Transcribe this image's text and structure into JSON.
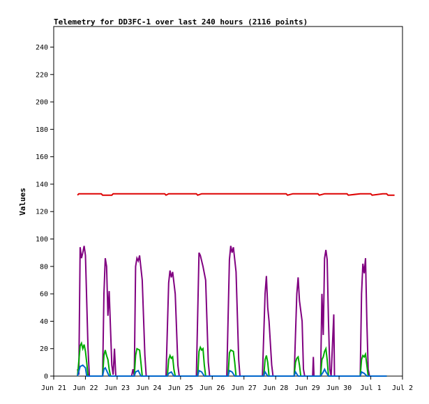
{
  "chart_data": {
    "type": "line",
    "title": "Telemetry for DD3FC-1 over last 240 hours (2116 points)",
    "ylabel": "Values",
    "xlabel": "",
    "ylim": [
      0,
      255
    ],
    "yticks": [
      0,
      20,
      40,
      60,
      80,
      100,
      120,
      140,
      160,
      180,
      200,
      220,
      240
    ],
    "xlim": [
      "2023-06-21",
      "2023-07-02"
    ],
    "xticks": [
      {
        "date": "2023-06-21",
        "label": "Jun 21"
      },
      {
        "date": "2023-06-22",
        "label": "Jun 22"
      },
      {
        "date": "2023-06-23",
        "label": "Jun 23"
      },
      {
        "date": "2023-06-24",
        "label": "Jun 24"
      },
      {
        "date": "2023-06-25",
        "label": "Jun 25"
      },
      {
        "date": "2023-06-26",
        "label": "Jun 26"
      },
      {
        "date": "2023-06-27",
        "label": "Jun 27"
      },
      {
        "date": "2023-06-28",
        "label": "Jun 28"
      },
      {
        "date": "2023-06-29",
        "label": "Jun 29"
      },
      {
        "date": "2023-06-30",
        "label": "Jun 30"
      },
      {
        "date": "2023-07-01",
        "label": "Jul 1"
      },
      {
        "date": "2023-07-02",
        "label": "Jul 2"
      }
    ],
    "grid": false,
    "legend": "none",
    "series": [
      {
        "color": "#dd0000",
        "points": [
          [
            "2023-06-21 18:00",
            132
          ],
          [
            "2023-06-21 19:00",
            133
          ],
          [
            "2023-06-22 12:00",
            133
          ],
          [
            "2023-06-22 13:00",
            132
          ],
          [
            "2023-06-22 20:00",
            132
          ],
          [
            "2023-06-22 21:00",
            133
          ],
          [
            "2023-06-24 12:00",
            133
          ],
          [
            "2023-06-24 13:00",
            132
          ],
          [
            "2023-06-24 15:00",
            133
          ],
          [
            "2023-06-25 12:00",
            133
          ],
          [
            "2023-06-25 13:00",
            132
          ],
          [
            "2023-06-25 16:00",
            133
          ],
          [
            "2023-06-27 20:00",
            133
          ],
          [
            "2023-06-28 08:00",
            133
          ],
          [
            "2023-06-28 09:00",
            132
          ],
          [
            "2023-06-28 13:00",
            133
          ],
          [
            "2023-06-29 08:00",
            133
          ],
          [
            "2023-06-29 09:00",
            132
          ],
          [
            "2023-06-29 13:00",
            133
          ],
          [
            "2023-06-30 06:00",
            133
          ],
          [
            "2023-06-30 07:00",
            132
          ],
          [
            "2023-06-30 16:00",
            133
          ],
          [
            "2023-07-01 00:00",
            133
          ],
          [
            "2023-07-01 01:00",
            132
          ],
          [
            "2023-07-01 09:00",
            133
          ],
          [
            "2023-07-01 12:00",
            133
          ],
          [
            "2023-07-01 13:00",
            132
          ],
          [
            "2023-07-01 18:00",
            132
          ]
        ]
      },
      {
        "color": "#800080",
        "points": [
          [
            "2023-06-21 18:00",
            5
          ],
          [
            "2023-06-21 19:00",
            1
          ],
          [
            "2023-06-21 20:00",
            94
          ],
          [
            "2023-06-21 21:00",
            86
          ],
          [
            "2023-06-21 22:00",
            90
          ],
          [
            "2023-06-21 23:00",
            95
          ],
          [
            "2023-06-22 00:00",
            88
          ],
          [
            "2023-06-22 02:00",
            20
          ],
          [
            "2023-06-22 03:00",
            0
          ],
          [
            "2023-06-22 10:00",
            0
          ],
          [
            "2023-06-22 13:00",
            0
          ],
          [
            "2023-06-22 14:00",
            60
          ],
          [
            "2023-06-22 15:00",
            86
          ],
          [
            "2023-06-22 16:00",
            80
          ],
          [
            "2023-06-22 17:00",
            44
          ],
          [
            "2023-06-22 18:00",
            62
          ],
          [
            "2023-06-22 20:00",
            8
          ],
          [
            "2023-06-22 21:00",
            1
          ],
          [
            "2023-06-22 22:00",
            20
          ],
          [
            "2023-06-22 23:00",
            0
          ],
          [
            "2023-06-23 11:00",
            0
          ],
          [
            "2023-06-23 12:00",
            5
          ],
          [
            "2023-06-23 13:00",
            0
          ],
          [
            "2023-06-23 14:00",
            80
          ],
          [
            "2023-06-23 15:00",
            86
          ],
          [
            "2023-06-23 16:00",
            84
          ],
          [
            "2023-06-23 17:00",
            88
          ],
          [
            "2023-06-23 19:00",
            70
          ],
          [
            "2023-06-23 21:00",
            15
          ],
          [
            "2023-06-23 22:00",
            0
          ],
          [
            "2023-06-24 13:00",
            0
          ],
          [
            "2023-06-24 15:00",
            68
          ],
          [
            "2023-06-24 16:00",
            77
          ],
          [
            "2023-06-24 17:00",
            72
          ],
          [
            "2023-06-24 18:00",
            76
          ],
          [
            "2023-06-24 20:00",
            60
          ],
          [
            "2023-06-24 22:00",
            8
          ],
          [
            "2023-06-24 23:00",
            0
          ],
          [
            "2023-06-25 12:00",
            0
          ],
          [
            "2023-06-25 14:00",
            90
          ],
          [
            "2023-06-25 15:00",
            88
          ],
          [
            "2023-06-25 16:00",
            84
          ],
          [
            "2023-06-25 17:00",
            80
          ],
          [
            "2023-06-25 19:00",
            70
          ],
          [
            "2023-06-25 21:00",
            10
          ],
          [
            "2023-06-25 22:00",
            0
          ],
          [
            "2023-06-26 11:00",
            0
          ],
          [
            "2023-06-26 13:00",
            85
          ],
          [
            "2023-06-26 14:00",
            95
          ],
          [
            "2023-06-26 15:00",
            90
          ],
          [
            "2023-06-26 16:00",
            94
          ],
          [
            "2023-06-26 18:00",
            76
          ],
          [
            "2023-06-26 20:00",
            12
          ],
          [
            "2023-06-26 21:00",
            0
          ],
          [
            "2023-06-27 14:00",
            0
          ],
          [
            "2023-06-27 16:00",
            60
          ],
          [
            "2023-06-27 17:00",
            73
          ],
          [
            "2023-06-27 18:00",
            50
          ],
          [
            "2023-06-27 19:00",
            40
          ],
          [
            "2023-06-27 21:00",
            8
          ],
          [
            "2023-06-27 22:00",
            0
          ],
          [
            "2023-06-28 14:00",
            0
          ],
          [
            "2023-06-28 16:00",
            60
          ],
          [
            "2023-06-28 17:00",
            72
          ],
          [
            "2023-06-28 18:00",
            55
          ],
          [
            "2023-06-28 20:00",
            40
          ],
          [
            "2023-06-28 21:00",
            5
          ],
          [
            "2023-06-28 22:00",
            0
          ],
          [
            "2023-06-29 04:00",
            0
          ],
          [
            "2023-06-29 04:30",
            14
          ],
          [
            "2023-06-29 05:00",
            0
          ],
          [
            "2023-06-29 10:00",
            0
          ],
          [
            "2023-06-29 11:00",
            60
          ],
          [
            "2023-06-29 12:00",
            30
          ],
          [
            "2023-06-29 13:00",
            86
          ],
          [
            "2023-06-29 14:00",
            92
          ],
          [
            "2023-06-29 15:00",
            85
          ],
          [
            "2023-06-29 16:00",
            40
          ],
          [
            "2023-06-29 17:00",
            5
          ],
          [
            "2023-06-29 18:00",
            0
          ],
          [
            "2023-06-29 20:00",
            45
          ],
          [
            "2023-06-29 20:30",
            0
          ],
          [
            "2023-06-30 16:00",
            0
          ],
          [
            "2023-06-30 17:00",
            60
          ],
          [
            "2023-06-30 18:00",
            82
          ],
          [
            "2023-06-30 19:00",
            75
          ],
          [
            "2023-06-30 20:00",
            86
          ],
          [
            "2023-06-30 21:00",
            40
          ],
          [
            "2023-06-30 22:00",
            5
          ],
          [
            "2023-06-30 23:00",
            0
          ],
          [
            "2023-07-01 12:00",
            0
          ]
        ]
      },
      {
        "color": "#00aa00",
        "points": [
          [
            "2023-06-21 18:00",
            0
          ],
          [
            "2023-06-21 20:00",
            22
          ],
          [
            "2023-06-21 21:00",
            24
          ],
          [
            "2023-06-21 22:00",
            20
          ],
          [
            "2023-06-21 23:00",
            23
          ],
          [
            "2023-06-22 00:00",
            18
          ],
          [
            "2023-06-22 01:00",
            10
          ],
          [
            "2023-06-22 02:00",
            0
          ],
          [
            "2023-06-22 13:00",
            0
          ],
          [
            "2023-06-22 14:00",
            15
          ],
          [
            "2023-06-22 15:00",
            19
          ],
          [
            "2023-06-22 16:00",
            15
          ],
          [
            "2023-06-22 17:00",
            12
          ],
          [
            "2023-06-22 18:00",
            5
          ],
          [
            "2023-06-22 19:00",
            0
          ],
          [
            "2023-06-23 13:00",
            0
          ],
          [
            "2023-06-23 14:00",
            15
          ],
          [
            "2023-06-23 15:00",
            20
          ],
          [
            "2023-06-23 17:00",
            19
          ],
          [
            "2023-06-23 18:00",
            10
          ],
          [
            "2023-06-23 19:00",
            0
          ],
          [
            "2023-06-24 14:00",
            0
          ],
          [
            "2023-06-24 15:00",
            12
          ],
          [
            "2023-06-24 16:00",
            15
          ],
          [
            "2023-06-24 17:00",
            13
          ],
          [
            "2023-06-24 18:00",
            14
          ],
          [
            "2023-06-24 19:00",
            5
          ],
          [
            "2023-06-24 20:00",
            0
          ],
          [
            "2023-06-25 13:00",
            0
          ],
          [
            "2023-06-25 14:00",
            18
          ],
          [
            "2023-06-25 15:00",
            21
          ],
          [
            "2023-06-25 16:00",
            19
          ],
          [
            "2023-06-25 17:00",
            20
          ],
          [
            "2023-06-25 18:00",
            8
          ],
          [
            "2023-06-25 19:00",
            0
          ],
          [
            "2023-06-26 12:00",
            0
          ],
          [
            "2023-06-26 13:00",
            17
          ],
          [
            "2023-06-26 14:00",
            19
          ],
          [
            "2023-06-26 16:00",
            18
          ],
          [
            "2023-06-26 17:00",
            10
          ],
          [
            "2023-06-26 18:00",
            0
          ],
          [
            "2023-06-27 15:00",
            0
          ],
          [
            "2023-06-27 16:00",
            12
          ],
          [
            "2023-06-27 17:00",
            15
          ],
          [
            "2023-06-27 18:00",
            10
          ],
          [
            "2023-06-27 19:00",
            0
          ],
          [
            "2023-06-28 14:00",
            0
          ],
          [
            "2023-06-28 15:00",
            10
          ],
          [
            "2023-06-28 16:00",
            13
          ],
          [
            "2023-06-28 17:00",
            14
          ],
          [
            "2023-06-28 18:00",
            8
          ],
          [
            "2023-06-28 19:00",
            0
          ],
          [
            "2023-06-29 10:00",
            0
          ],
          [
            "2023-06-29 11:00",
            12
          ],
          [
            "2023-06-29 12:00",
            14
          ],
          [
            "2023-06-29 13:00",
            18
          ],
          [
            "2023-06-29 14:00",
            20
          ],
          [
            "2023-06-29 15:00",
            12
          ],
          [
            "2023-06-29 16:00",
            0
          ],
          [
            "2023-06-30 16:00",
            0
          ],
          [
            "2023-06-30 17:00",
            12
          ],
          [
            "2023-06-30 18:00",
            15
          ],
          [
            "2023-06-30 19:00",
            14
          ],
          [
            "2023-06-30 20:00",
            16
          ],
          [
            "2023-06-30 21:00",
            8
          ],
          [
            "2023-06-30 22:00",
            0
          ],
          [
            "2023-07-01 12:00",
            0
          ]
        ]
      },
      {
        "color": "#0066cc",
        "points": [
          [
            "2023-06-21 18:00",
            0
          ],
          [
            "2023-06-21 20:00",
            7
          ],
          [
            "2023-06-21 22:00",
            8
          ],
          [
            "2023-06-22 00:00",
            6
          ],
          [
            "2023-06-22 01:00",
            0
          ],
          [
            "2023-06-22 13:00",
            0
          ],
          [
            "2023-06-22 14:00",
            5
          ],
          [
            "2023-06-22 15:00",
            6
          ],
          [
            "2023-06-22 16:00",
            4
          ],
          [
            "2023-06-22 18:00",
            0
          ],
          [
            "2023-06-23 13:00",
            0
          ],
          [
            "2023-06-23 14:00",
            3
          ],
          [
            "2023-06-23 16:00",
            4
          ],
          [
            "2023-06-23 18:00",
            0
          ],
          [
            "2023-06-24 14:00",
            0
          ],
          [
            "2023-06-24 15:00",
            2
          ],
          [
            "2023-06-24 17:00",
            3
          ],
          [
            "2023-06-24 19:00",
            0
          ],
          [
            "2023-06-25 13:00",
            0
          ],
          [
            "2023-06-25 14:00",
            4
          ],
          [
            "2023-06-25 16:00",
            3
          ],
          [
            "2023-06-25 18:00",
            0
          ],
          [
            "2023-06-26 12:00",
            0
          ],
          [
            "2023-06-26 13:00",
            4
          ],
          [
            "2023-06-26 15:00",
            3
          ],
          [
            "2023-06-26 17:00",
            0
          ],
          [
            "2023-06-27 15:00",
            0
          ],
          [
            "2023-06-27 16:00",
            3
          ],
          [
            "2023-06-27 18:00",
            0
          ],
          [
            "2023-06-28 14:00",
            0
          ],
          [
            "2023-06-28 15:00",
            3
          ],
          [
            "2023-06-28 17:00",
            0
          ],
          [
            "2023-06-29 10:00",
            0
          ],
          [
            "2023-06-29 12:00",
            3
          ],
          [
            "2023-06-29 13:00",
            5
          ],
          [
            "2023-06-29 14:00",
            3
          ],
          [
            "2023-06-29 16:00",
            0
          ],
          [
            "2023-06-30 16:00",
            0
          ],
          [
            "2023-06-30 17:00",
            3
          ],
          [
            "2023-06-30 19:00",
            2
          ],
          [
            "2023-06-30 21:00",
            0
          ],
          [
            "2023-07-01 12:00",
            0
          ]
        ]
      }
    ]
  }
}
